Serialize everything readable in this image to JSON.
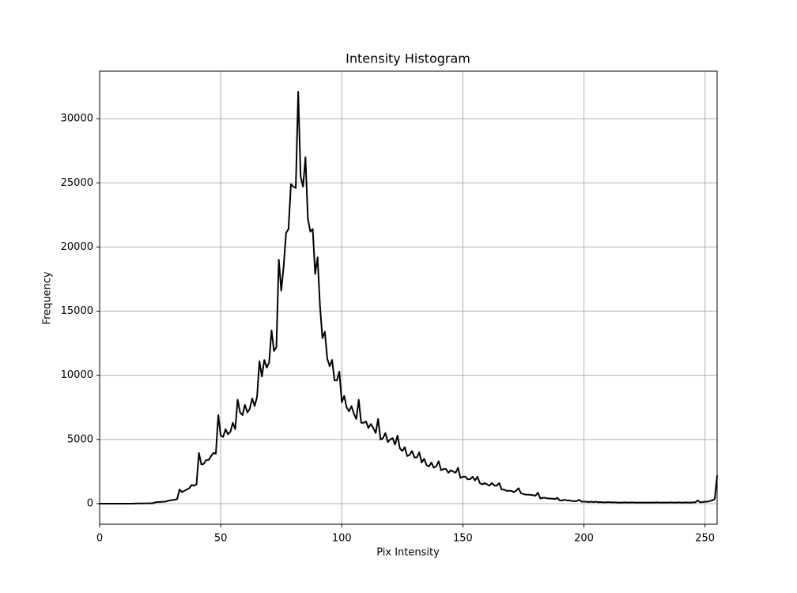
{
  "chart_data": {
    "type": "line",
    "title": "Intensity Histogram",
    "x_label": "Pix Intensity",
    "y_label": "Frequency",
    "x": [
      0,
      1,
      2,
      3,
      4,
      5,
      6,
      7,
      8,
      9,
      10,
      11,
      12,
      13,
      14,
      15,
      16,
      17,
      18,
      19,
      20,
      21,
      22,
      23,
      24,
      25,
      26,
      27,
      28,
      29,
      30,
      31,
      32,
      33,
      34,
      35,
      36,
      37,
      38,
      39,
      40,
      41,
      42,
      43,
      44,
      45,
      46,
      47,
      48,
      49,
      50,
      51,
      52,
      53,
      54,
      55,
      56,
      57,
      58,
      59,
      60,
      61,
      62,
      63,
      64,
      65,
      66,
      67,
      68,
      69,
      70,
      71,
      72,
      73,
      74,
      75,
      76,
      77,
      78,
      79,
      80,
      81,
      82,
      83,
      84,
      85,
      86,
      87,
      88,
      89,
      90,
      91,
      92,
      93,
      94,
      95,
      96,
      97,
      98,
      99,
      100,
      101,
      102,
      103,
      104,
      105,
      106,
      107,
      108,
      109,
      110,
      111,
      112,
      113,
      114,
      115,
      116,
      117,
      118,
      119,
      120,
      121,
      122,
      123,
      124,
      125,
      126,
      127,
      128,
      129,
      130,
      131,
      132,
      133,
      134,
      135,
      136,
      137,
      138,
      139,
      140,
      141,
      142,
      143,
      144,
      145,
      146,
      147,
      148,
      149,
      150,
      151,
      152,
      153,
      154,
      155,
      156,
      157,
      158,
      159,
      160,
      161,
      162,
      163,
      164,
      165,
      166,
      167,
      168,
      169,
      170,
      171,
      172,
      173,
      174,
      175,
      176,
      177,
      178,
      179,
      180,
      181,
      182,
      183,
      184,
      185,
      186,
      187,
      188,
      189,
      190,
      191,
      192,
      193,
      194,
      195,
      196,
      197,
      198,
      199,
      200,
      201,
      202,
      203,
      204,
      205,
      206,
      207,
      208,
      209,
      210,
      211,
      212,
      213,
      214,
      215,
      216,
      217,
      218,
      219,
      220,
      221,
      222,
      223,
      224,
      225,
      226,
      227,
      228,
      229,
      230,
      231,
      232,
      233,
      234,
      235,
      236,
      237,
      238,
      239,
      240,
      241,
      242,
      243,
      244,
      245,
      246,
      247,
      248,
      249,
      250,
      251,
      252,
      253,
      254,
      255
    ],
    "series": [
      {
        "color": "#000000",
        "values": [
          0,
          0,
          0,
          0,
          0,
          0,
          0,
          0,
          0,
          0,
          0,
          0,
          0,
          0,
          0,
          10,
          10,
          10,
          20,
          20,
          20,
          30,
          30,
          100,
          120,
          130,
          140,
          150,
          200,
          250,
          280,
          300,
          350,
          1100,
          900,
          1000,
          1100,
          1200,
          1450,
          1400,
          1500,
          3950,
          3050,
          3100,
          3400,
          3400,
          3700,
          3950,
          3900,
          6900,
          5300,
          5200,
          5800,
          5400,
          5600,
          6300,
          5800,
          8100,
          7100,
          6900,
          7700,
          7100,
          7400,
          8200,
          7600,
          8300,
          11100,
          9900,
          11200,
          10600,
          11000,
          13500,
          11900,
          12200,
          19000,
          16600,
          18500,
          21100,
          21400,
          24900,
          24700,
          24600,
          32100,
          25500,
          24700,
          27000,
          22200,
          21200,
          21400,
          17900,
          19200,
          15400,
          12900,
          13400,
          11300,
          10700,
          11200,
          9600,
          9600,
          10300,
          7900,
          8400,
          7500,
          7200,
          7600,
          7000,
          6600,
          8100,
          6300,
          6300,
          6400,
          5900,
          6200,
          5900,
          5500,
          6600,
          5000,
          5100,
          5500,
          4800,
          5000,
          5100,
          4600,
          5300,
          4300,
          4100,
          4400,
          3700,
          3800,
          4100,
          3600,
          3600,
          4000,
          3200,
          3500,
          3000,
          2900,
          3200,
          2800,
          2900,
          3300,
          2600,
          2700,
          2700,
          2400,
          2600,
          2500,
          2400,
          2800,
          2000,
          2100,
          2100,
          1900,
          1900,
          2100,
          1800,
          2100,
          1600,
          1500,
          1600,
          1500,
          1400,
          1600,
          1400,
          1400,
          1600,
          1100,
          1100,
          1000,
          1000,
          1000,
          900,
          1000,
          1200,
          800,
          750,
          700,
          700,
          680,
          650,
          620,
          850,
          400,
          450,
          450,
          400,
          400,
          380,
          350,
          450,
          250,
          250,
          300,
          250,
          250,
          200,
          200,
          200,
          300,
          150,
          150,
          150,
          120,
          150,
          120,
          150,
          100,
          120,
          100,
          100,
          120,
          100,
          100,
          100,
          80,
          80,
          80,
          100,
          80,
          80,
          100,
          80,
          80,
          80,
          80,
          80,
          80,
          80,
          80,
          80,
          100,
          80,
          80,
          80,
          80,
          80,
          100,
          80,
          80,
          100,
          80,
          80,
          100,
          80,
          80,
          100,
          100,
          250,
          100,
          120,
          150,
          150,
          200,
          250,
          350,
          2200
        ]
      }
    ],
    "xlim": [
      0,
      255
    ],
    "xticks": [
      0,
      50,
      100,
      150,
      200,
      250
    ],
    "ylim": [
      -1605,
      33705
    ],
    "yticks": [
      0,
      5000,
      10000,
      15000,
      20000,
      25000,
      30000
    ],
    "grid": true
  }
}
